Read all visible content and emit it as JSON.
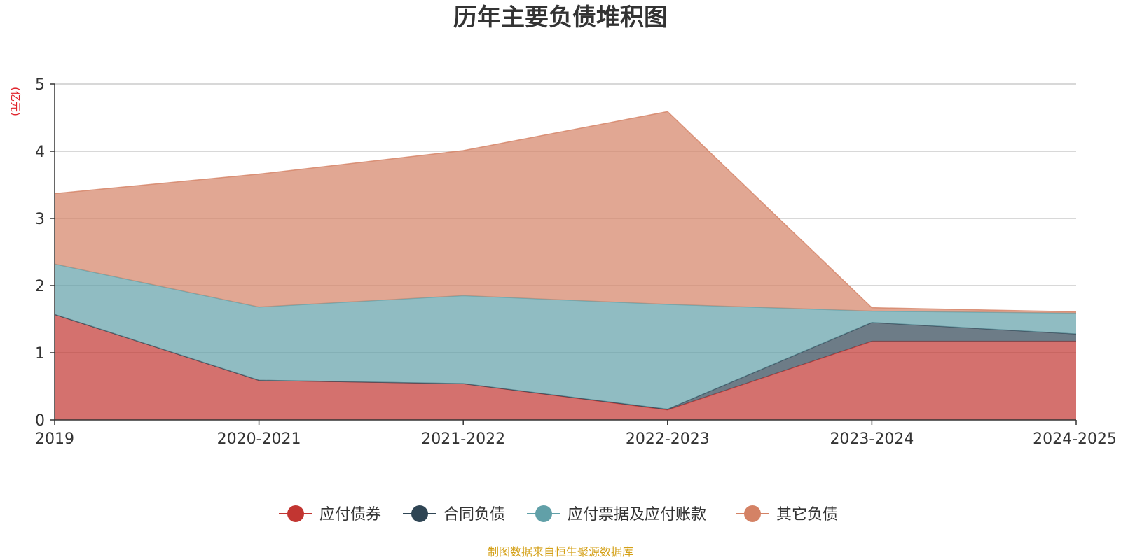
{
  "chart_data": {
    "type": "area",
    "stacked": true,
    "title": "历年主要负债堆积图",
    "ylabel": "(亿元)",
    "xlabel": "",
    "categories": [
      "2019",
      "2020-2021",
      "2021-2022",
      "2022-2023",
      "2023-2024",
      "2024-2025"
    ],
    "ylim": [
      0,
      5
    ],
    "yticks": [
      0,
      1,
      2,
      3,
      4,
      5
    ],
    "grid": true,
    "legend_position": "bottom",
    "series": [
      {
        "name": "应付债券",
        "color": "#c23531",
        "values": [
          1.57,
          0.59,
          0.54,
          0.15,
          1.17,
          1.17
        ]
      },
      {
        "name": "合同负债",
        "color": "#2f4554",
        "values": [
          0,
          0,
          0,
          0.01,
          0.28,
          0.11
        ]
      },
      {
        "name": "应付票据及应付账款",
        "color": "#61a0a8",
        "values": [
          0.75,
          1.09,
          1.31,
          1.56,
          0.17,
          0.31
        ]
      },
      {
        "name": "其它负债",
        "color": "#d48265",
        "values": [
          1.05,
          1.98,
          2.16,
          2.87,
          0.05,
          0.02
        ]
      }
    ]
  },
  "source_note": "制图数据来自恒生聚源数据库"
}
